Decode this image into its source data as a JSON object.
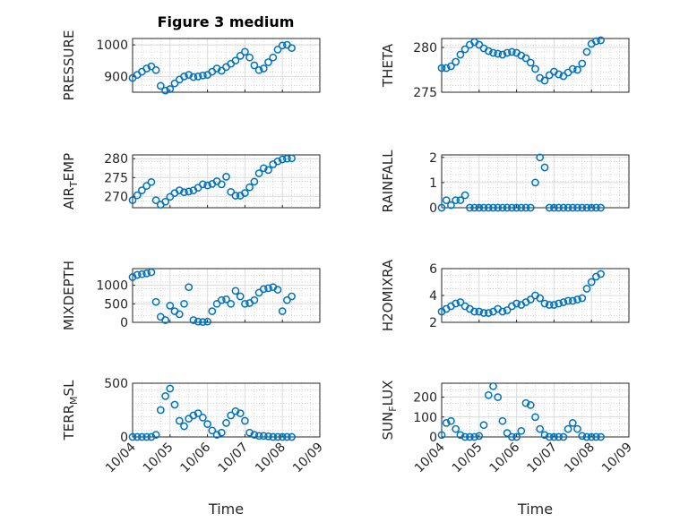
{
  "figure_title": "Figure 3 medium",
  "chart_data": [
    {
      "type": "scatter",
      "ylabel": "PRESSURE",
      "ylim": [
        850,
        1020
      ],
      "yticks": [
        900,
        1000
      ],
      "x": [
        "10/04 00:00",
        "10/04 03:00",
        "10/04 06:00",
        "10/04 09:00",
        "10/04 12:00",
        "10/04 15:00",
        "10/04 18:00",
        "10/04 21:00",
        "10/05 00:00",
        "10/05 03:00",
        "10/05 06:00",
        "10/05 09:00",
        "10/05 12:00",
        "10/05 15:00",
        "10/05 18:00",
        "10/05 21:00",
        "10/06 00:00",
        "10/06 03:00",
        "10/06 06:00",
        "10/06 09:00",
        "10/06 12:00",
        "10/06 15:00",
        "10/06 18:00",
        "10/06 21:00",
        "10/07 00:00",
        "10/07 03:00",
        "10/07 06:00",
        "10/07 09:00",
        "10/07 12:00",
        "10/07 15:00",
        "10/07 18:00",
        "10/07 21:00",
        "10/08 00:00",
        "10/08 03:00",
        "10/08 06:00"
      ],
      "y": [
        895,
        905,
        915,
        925,
        932,
        920,
        870,
        855,
        860,
        878,
        890,
        900,
        905,
        898,
        900,
        903,
        905,
        915,
        925,
        918,
        930,
        940,
        950,
        965,
        978,
        960,
        935,
        920,
        925,
        945,
        960,
        985,
        998,
        1000,
        990
      ]
    },
    {
      "type": "scatter",
      "ylabel": "THETA",
      "ylim": [
        275,
        281
      ],
      "yticks": [
        275,
        280
      ],
      "x": [
        "10/04 00:00",
        "10/04 03:00",
        "10/04 06:00",
        "10/04 09:00",
        "10/04 12:00",
        "10/04 15:00",
        "10/04 18:00",
        "10/04 21:00",
        "10/05 00:00",
        "10/05 03:00",
        "10/05 06:00",
        "10/05 09:00",
        "10/05 12:00",
        "10/05 15:00",
        "10/05 18:00",
        "10/05 21:00",
        "10/06 00:00",
        "10/06 03:00",
        "10/06 06:00",
        "10/06 09:00",
        "10/06 12:00",
        "10/06 15:00",
        "10/06 18:00",
        "10/06 21:00",
        "10/07 00:00",
        "10/07 03:00",
        "10/07 06:00",
        "10/07 09:00",
        "10/07 12:00",
        "10/07 15:00",
        "10/07 18:00",
        "10/07 21:00",
        "10/08 00:00",
        "10/08 03:00",
        "10/08 06:00"
      ],
      "y": [
        277.7,
        277.7,
        277.9,
        278.4,
        279.2,
        279.8,
        280.3,
        280.6,
        280.3,
        279.9,
        279.6,
        279.4,
        279.3,
        279.2,
        279.4,
        279.5,
        279.4,
        279.1,
        278.8,
        278.3,
        277.6,
        276.6,
        276.3,
        276.9,
        277.3,
        277.0,
        276.8,
        277.2,
        277.6,
        277.5,
        278.2,
        279.5,
        280.4,
        280.7,
        280.8
      ]
    },
    {
      "type": "scatter",
      "ylabel": "AIR_TEMP",
      "ylim": [
        267,
        281
      ],
      "yticks": [
        270,
        275,
        280
      ],
      "x": [
        "10/04 00:00",
        "10/04 03:00",
        "10/04 06:00",
        "10/04 09:00",
        "10/04 12:00",
        "10/04 15:00",
        "10/04 18:00",
        "10/04 21:00",
        "10/05 00:00",
        "10/05 03:00",
        "10/05 06:00",
        "10/05 09:00",
        "10/05 12:00",
        "10/05 15:00",
        "10/05 18:00",
        "10/05 21:00",
        "10/06 00:00",
        "10/06 03:00",
        "10/06 06:00",
        "10/06 09:00",
        "10/06 12:00",
        "10/06 15:00",
        "10/06 18:00",
        "10/06 21:00",
        "10/07 00:00",
        "10/07 03:00",
        "10/07 06:00",
        "10/07 09:00",
        "10/07 12:00",
        "10/07 15:00",
        "10/07 18:00",
        "10/07 21:00",
        "10/08 00:00",
        "10/08 03:00",
        "10/08 06:00"
      ],
      "y": [
        269.0,
        270.3,
        271.6,
        272.8,
        273.8,
        269.0,
        267.8,
        268.6,
        269.9,
        270.9,
        271.6,
        271.1,
        271.3,
        271.6,
        272.3,
        273.2,
        272.9,
        273.3,
        274.0,
        273.2,
        275.2,
        271.2,
        270.2,
        270.2,
        270.9,
        272.4,
        273.9,
        276.1,
        277.5,
        277.0,
        278.5,
        279.3,
        279.8,
        280.0,
        280.1
      ]
    },
    {
      "type": "scatter",
      "ylabel": "RAINFALL",
      "ylim": [
        0,
        2.1
      ],
      "yticks": [
        0,
        1,
        2
      ],
      "x": [
        "10/04 00:00",
        "10/04 03:00",
        "10/04 06:00",
        "10/04 09:00",
        "10/04 12:00",
        "10/04 15:00",
        "10/04 18:00",
        "10/04 21:00",
        "10/05 00:00",
        "10/05 03:00",
        "10/05 06:00",
        "10/05 09:00",
        "10/05 12:00",
        "10/05 15:00",
        "10/05 18:00",
        "10/05 21:00",
        "10/06 00:00",
        "10/06 03:00",
        "10/06 06:00",
        "10/06 09:00",
        "10/06 12:00",
        "10/06 15:00",
        "10/06 18:00",
        "10/06 21:00",
        "10/07 00:00",
        "10/07 03:00",
        "10/07 06:00",
        "10/07 09:00",
        "10/07 12:00",
        "10/07 15:00",
        "10/07 18:00",
        "10/07 21:00",
        "10/08 00:00",
        "10/08 03:00",
        "10/08 06:00"
      ],
      "y": [
        0,
        0.3,
        0.1,
        0.3,
        0.3,
        0.5,
        0,
        0,
        0,
        0,
        0,
        0,
        0,
        0,
        0,
        0,
        0,
        0,
        0,
        0,
        1.0,
        2.0,
        1.6,
        0,
        0,
        0,
        0,
        0,
        0,
        0,
        0,
        0,
        0,
        0,
        0
      ]
    },
    {
      "type": "scatter",
      "ylabel": "MIXDEPTH",
      "ylim": [
        0,
        1450
      ],
      "yticks": [
        0,
        500,
        1000
      ],
      "x": [
        "10/04 00:00",
        "10/04 03:00",
        "10/04 06:00",
        "10/04 09:00",
        "10/04 12:00",
        "10/04 15:00",
        "10/04 18:00",
        "10/04 21:00",
        "10/05 00:00",
        "10/05 03:00",
        "10/05 06:00",
        "10/05 09:00",
        "10/05 12:00",
        "10/05 15:00",
        "10/05 18:00",
        "10/05 21:00",
        "10/06 00:00",
        "10/06 03:00",
        "10/06 06:00",
        "10/06 09:00",
        "10/06 12:00",
        "10/06 15:00",
        "10/06 18:00",
        "10/06 21:00",
        "10/07 00:00",
        "10/07 03:00",
        "10/07 06:00",
        "10/07 09:00",
        "10/07 12:00",
        "10/07 15:00",
        "10/07 18:00",
        "10/07 21:00",
        "10/08 00:00",
        "10/08 03:00",
        "10/08 06:00"
      ],
      "y": [
        1220,
        1280,
        1300,
        1320,
        1350,
        550,
        150,
        60,
        450,
        300,
        220,
        500,
        950,
        60,
        20,
        10,
        20,
        300,
        500,
        600,
        620,
        500,
        850,
        700,
        500,
        520,
        600,
        800,
        900,
        920,
        950,
        880,
        300,
        600,
        700
      ]
    },
    {
      "type": "scatter",
      "ylabel": "H2OMIXRA",
      "ylim": [
        2,
        6
      ],
      "yticks": [
        2,
        4,
        6
      ],
      "x": [
        "10/04 00:00",
        "10/04 03:00",
        "10/04 06:00",
        "10/04 09:00",
        "10/04 12:00",
        "10/04 15:00",
        "10/04 18:00",
        "10/04 21:00",
        "10/05 00:00",
        "10/05 03:00",
        "10/05 06:00",
        "10/05 09:00",
        "10/05 12:00",
        "10/05 15:00",
        "10/05 18:00",
        "10/05 21:00",
        "10/06 00:00",
        "10/06 03:00",
        "10/06 06:00",
        "10/06 09:00",
        "10/06 12:00",
        "10/06 15:00",
        "10/06 18:00",
        "10/06 21:00",
        "10/07 00:00",
        "10/07 03:00",
        "10/07 06:00",
        "10/07 09:00",
        "10/07 12:00",
        "10/07 15:00",
        "10/07 18:00",
        "10/07 21:00",
        "10/08 00:00",
        "10/08 03:00",
        "10/08 06:00"
      ],
      "y": [
        2.8,
        3.0,
        3.2,
        3.4,
        3.5,
        3.2,
        3.0,
        2.8,
        2.8,
        2.7,
        2.7,
        2.8,
        3.0,
        2.8,
        2.9,
        3.2,
        3.4,
        3.3,
        3.5,
        3.7,
        4.0,
        3.8,
        3.4,
        3.3,
        3.3,
        3.4,
        3.5,
        3.6,
        3.6,
        3.7,
        3.8,
        4.5,
        5.0,
        5.4,
        5.6
      ]
    },
    {
      "type": "scatter",
      "ylabel": "TERR_MSL",
      "ylim": [
        0,
        500
      ],
      "yticks": [
        0,
        500
      ],
      "x": [
        "10/04 00:00",
        "10/04 03:00",
        "10/04 06:00",
        "10/04 09:00",
        "10/04 12:00",
        "10/04 15:00",
        "10/04 18:00",
        "10/04 21:00",
        "10/05 00:00",
        "10/05 03:00",
        "10/05 06:00",
        "10/05 09:00",
        "10/05 12:00",
        "10/05 15:00",
        "10/05 18:00",
        "10/05 21:00",
        "10/06 00:00",
        "10/06 03:00",
        "10/06 06:00",
        "10/06 09:00",
        "10/06 12:00",
        "10/06 15:00",
        "10/06 18:00",
        "10/06 21:00",
        "10/07 00:00",
        "10/07 03:00",
        "10/07 06:00",
        "10/07 09:00",
        "10/07 12:00",
        "10/07 15:00",
        "10/07 18:00",
        "10/07 21:00",
        "10/08 00:00",
        "10/08 03:00",
        "10/08 06:00"
      ],
      "y": [
        0,
        0,
        0,
        0,
        0,
        20,
        250,
        380,
        450,
        300,
        150,
        100,
        170,
        200,
        220,
        180,
        120,
        60,
        20,
        40,
        130,
        200,
        240,
        220,
        150,
        40,
        20,
        10,
        10,
        5,
        0,
        0,
        0,
        0,
        0
      ]
    },
    {
      "type": "scatter",
      "ylabel": "SUN_FLUX",
      "ylim": [
        0,
        270
      ],
      "yticks": [
        0,
        100,
        200
      ],
      "x": [
        "10/04 00:00",
        "10/04 03:00",
        "10/04 06:00",
        "10/04 09:00",
        "10/04 12:00",
        "10/04 15:00",
        "10/04 18:00",
        "10/04 21:00",
        "10/05 00:00",
        "10/05 03:00",
        "10/05 06:00",
        "10/05 09:00",
        "10/05 12:00",
        "10/05 15:00",
        "10/05 18:00",
        "10/05 21:00",
        "10/06 00:00",
        "10/06 03:00",
        "10/06 06:00",
        "10/06 09:00",
        "10/06 12:00",
        "10/06 15:00",
        "10/06 18:00",
        "10/06 21:00",
        "10/07 00:00",
        "10/07 03:00",
        "10/07 06:00",
        "10/07 09:00",
        "10/07 12:00",
        "10/07 15:00",
        "10/07 18:00",
        "10/07 21:00",
        "10/08 00:00",
        "10/08 03:00",
        "10/08 06:00"
      ],
      "y": [
        10,
        70,
        80,
        40,
        10,
        0,
        0,
        0,
        5,
        60,
        210,
        255,
        200,
        80,
        20,
        0,
        0,
        30,
        170,
        160,
        100,
        40,
        10,
        0,
        0,
        0,
        0,
        40,
        70,
        40,
        5,
        0,
        0,
        0,
        0
      ]
    }
  ],
  "x_axis": {
    "tick_labels": [
      "10/04",
      "10/05",
      "10/06",
      "10/07",
      "10/08",
      "10/09"
    ],
    "label": "Time"
  },
  "colors": {
    "marker": "#0072BD",
    "grid": "#c8c8c8",
    "axes": "#262626"
  }
}
